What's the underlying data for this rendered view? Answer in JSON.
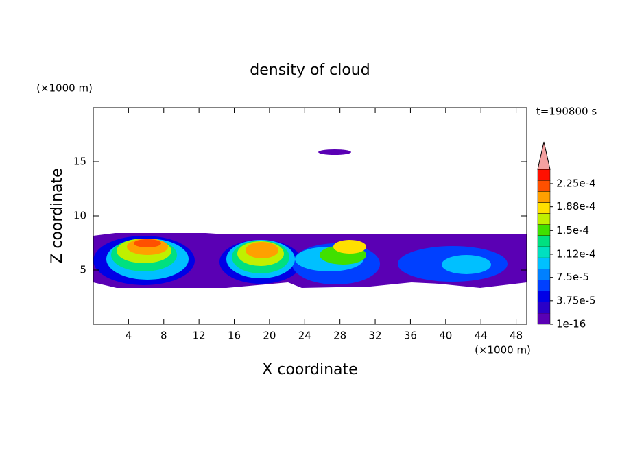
{
  "chart_data": {
    "type": "contour",
    "title": "density of cloud",
    "x_label": "X coordinate",
    "y_label": "Z coordinate",
    "x_unit": "(×1000 m)",
    "y_unit": "(×1000 m)",
    "time_label": "t=190800 s",
    "xlim": [
      0,
      49.2
    ],
    "xticks": [
      4,
      8,
      12,
      16,
      20,
      24,
      28,
      32,
      36,
      40,
      44,
      48
    ],
    "ylim": [
      0,
      20
    ],
    "yticks": [
      5,
      10,
      15
    ],
    "colorbar": {
      "lim": [
        1e-16,
        0.000248
      ],
      "colors": [
        "#5a00b4",
        "#2a00c8",
        "#0000e6",
        "#0040ff",
        "#0080ff",
        "#00c0ff",
        "#00e0c0",
        "#00e080",
        "#40e000",
        "#c0f000",
        "#ffe000",
        "#ffa000",
        "#ff5000",
        "#ff1000"
      ],
      "ticks": [
        {
          "value": 1e-16,
          "label": "1e-16"
        },
        {
          "value": 3.75e-05,
          "label": "3.75e-5"
        },
        {
          "value": 7.5e-05,
          "label": "7.5e-5"
        },
        {
          "value": 0.000112,
          "label": "1.12e-4"
        },
        {
          "value": 0.00015,
          "label": "1.5e-4"
        },
        {
          "value": 0.000188,
          "label": "1.88e-4"
        },
        {
          "value": 0.000225,
          "label": "2.25e-4"
        }
      ],
      "extend_color": "#f4a0a0"
    }
  }
}
